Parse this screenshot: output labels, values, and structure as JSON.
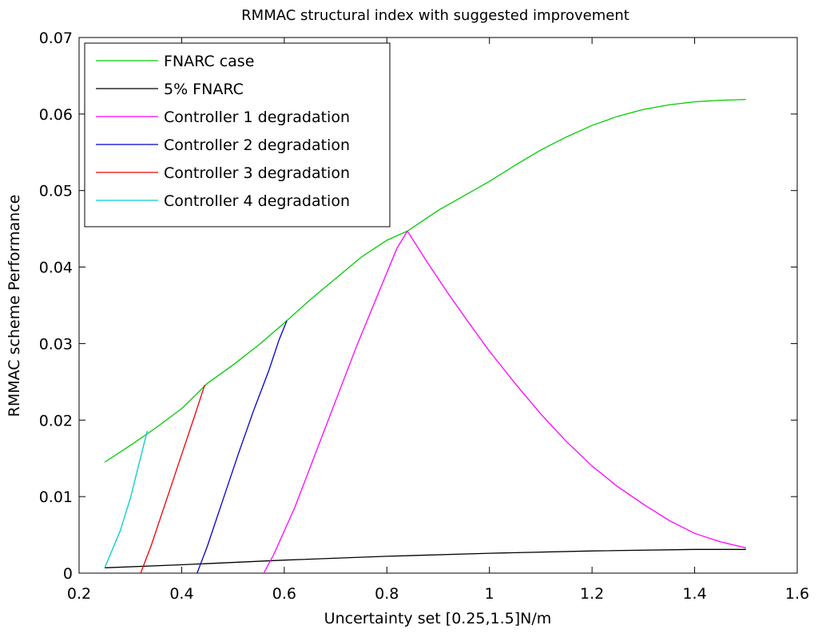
{
  "chart_data": {
    "type": "line",
    "title": "RMMAC structural index with suggested improvement",
    "xlabel": "Uncertainty set [0.25,1.5]N/m",
    "ylabel": "RMMAC scheme Performance",
    "xlim": [
      0.2,
      1.6
    ],
    "ylim": [
      0,
      0.07
    ],
    "x_ticks": [
      "0.2",
      "0.4",
      "0.6",
      "0.8",
      "1",
      "1.2",
      "1.4",
      "1.6"
    ],
    "y_ticks": [
      "0",
      "0.01",
      "0.02",
      "0.03",
      "0.04",
      "0.05",
      "0.06",
      "0.07"
    ],
    "legend_position": "top-left",
    "grid": false,
    "series": [
      {
        "name": "FNARC case",
        "color": "#00cc00",
        "points": [
          [
            0.25,
            0.0145
          ],
          [
            0.3,
            0.0167
          ],
          [
            0.35,
            0.019
          ],
          [
            0.4,
            0.0215
          ],
          [
            0.45,
            0.0248
          ],
          [
            0.5,
            0.0272
          ],
          [
            0.55,
            0.0298
          ],
          [
            0.6,
            0.0327
          ],
          [
            0.65,
            0.0357
          ],
          [
            0.7,
            0.0385
          ],
          [
            0.75,
            0.0413
          ],
          [
            0.8,
            0.0435
          ],
          [
            0.84,
            0.0447
          ],
          [
            0.9,
            0.0474
          ],
          [
            0.95,
            0.0493
          ],
          [
            1.0,
            0.0512
          ],
          [
            1.05,
            0.0533
          ],
          [
            1.1,
            0.0553
          ],
          [
            1.15,
            0.057
          ],
          [
            1.2,
            0.0585
          ],
          [
            1.25,
            0.0597
          ],
          [
            1.3,
            0.0606
          ],
          [
            1.35,
            0.0612
          ],
          [
            1.4,
            0.0616
          ],
          [
            1.45,
            0.0618
          ],
          [
            1.5,
            0.0619
          ]
        ]
      },
      {
        "name": "5% FNARC",
        "color": "#000000",
        "points": [
          [
            0.25,
            0.0007
          ],
          [
            0.4,
            0.0011
          ],
          [
            0.6,
            0.0017
          ],
          [
            0.8,
            0.0022
          ],
          [
            1.0,
            0.0026
          ],
          [
            1.2,
            0.0029
          ],
          [
            1.4,
            0.0031
          ],
          [
            1.5,
            0.0031
          ]
        ]
      },
      {
        "name": "Controller 1 degradation",
        "color": "#ff00ff",
        "points": [
          [
            0.56,
            0.0
          ],
          [
            0.58,
            0.0025
          ],
          [
            0.62,
            0.0085
          ],
          [
            0.66,
            0.0155
          ],
          [
            0.7,
            0.0225
          ],
          [
            0.74,
            0.0295
          ],
          [
            0.78,
            0.036
          ],
          [
            0.82,
            0.0425
          ],
          [
            0.84,
            0.0447
          ],
          [
            0.88,
            0.0405
          ],
          [
            0.92,
            0.0365
          ],
          [
            0.96,
            0.0327
          ],
          [
            1.0,
            0.029
          ],
          [
            1.05,
            0.0248
          ],
          [
            1.1,
            0.0208
          ],
          [
            1.15,
            0.0172
          ],
          [
            1.2,
            0.014
          ],
          [
            1.25,
            0.0113
          ],
          [
            1.3,
            0.009
          ],
          [
            1.35,
            0.0069
          ],
          [
            1.4,
            0.0052
          ],
          [
            1.45,
            0.0041
          ],
          [
            1.5,
            0.0033
          ]
        ]
      },
      {
        "name": "Controller 2 degradation",
        "color": "#0000cc",
        "points": [
          [
            0.43,
            0.0
          ],
          [
            0.45,
            0.0035
          ],
          [
            0.48,
            0.0095
          ],
          [
            0.51,
            0.0155
          ],
          [
            0.54,
            0.0212
          ],
          [
            0.57,
            0.0265
          ],
          [
            0.59,
            0.0305
          ],
          [
            0.605,
            0.033
          ]
        ]
      },
      {
        "name": "Controller 3 degradation",
        "color": "#ee0000",
        "points": [
          [
            0.32,
            0.0
          ],
          [
            0.34,
            0.0035
          ],
          [
            0.37,
            0.0095
          ],
          [
            0.4,
            0.0155
          ],
          [
            0.425,
            0.0205
          ],
          [
            0.445,
            0.0246
          ]
        ]
      },
      {
        "name": "Controller 4 degradation",
        "color": "#00cccc",
        "points": [
          [
            0.25,
            0.0007
          ],
          [
            0.28,
            0.0055
          ],
          [
            0.3,
            0.0098
          ],
          [
            0.315,
            0.0138
          ],
          [
            0.325,
            0.0165
          ],
          [
            0.333,
            0.0186
          ]
        ]
      }
    ]
  }
}
